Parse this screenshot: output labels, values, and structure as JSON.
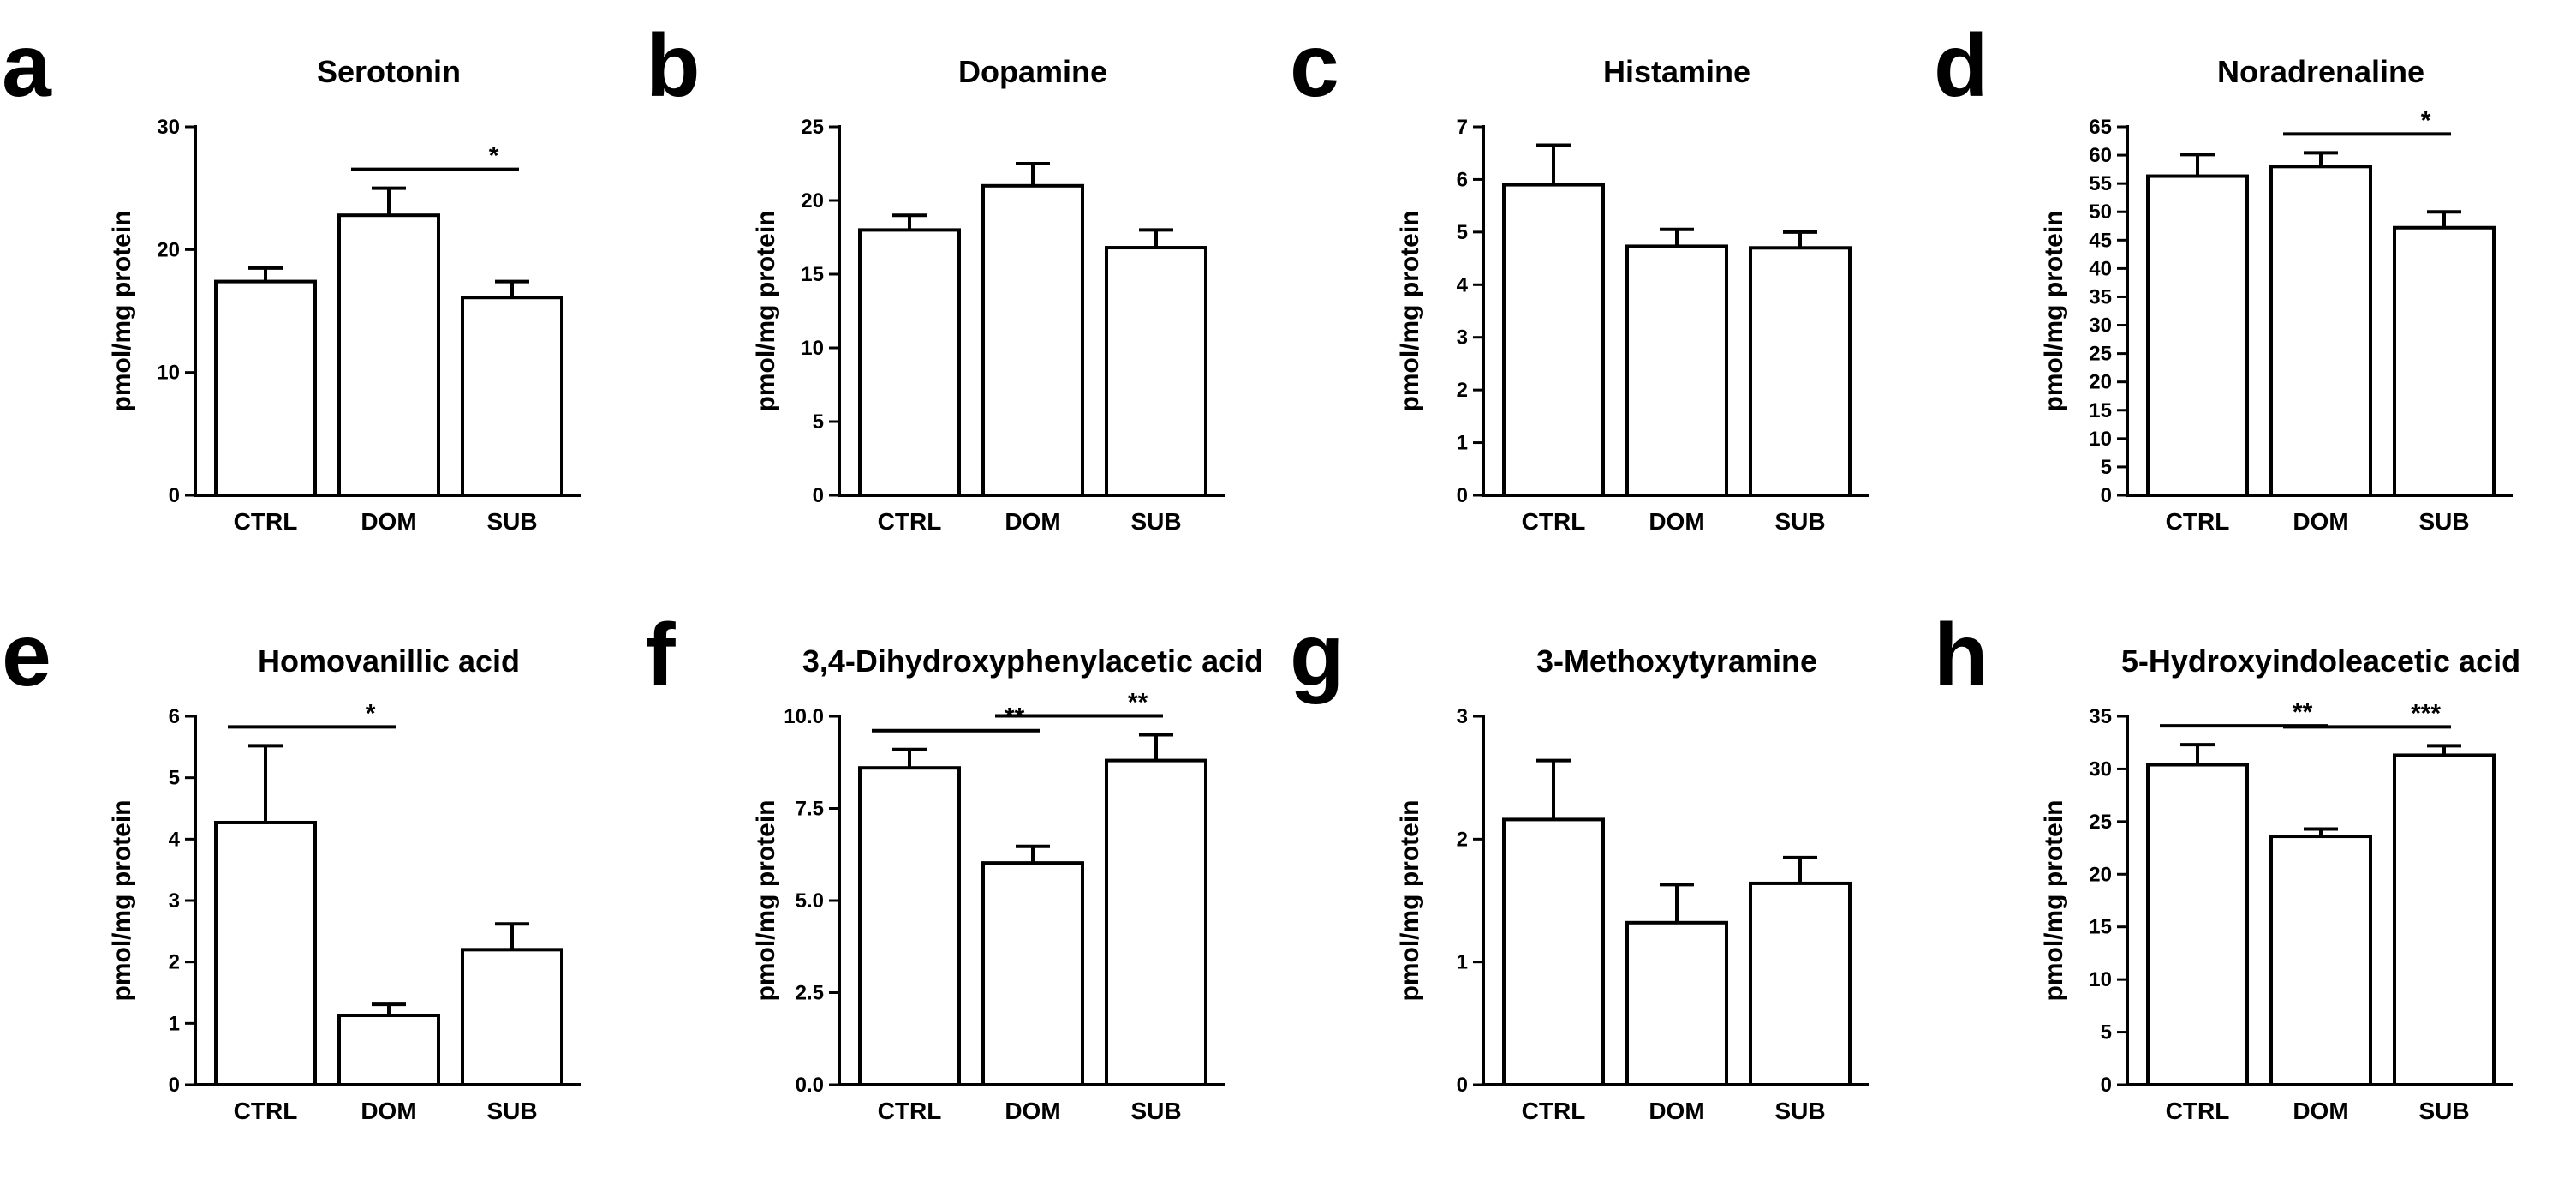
{
  "chart_data": [
    {
      "panel": "a",
      "type": "bar",
      "title": "Serotonin",
      "ylabel": "pmol/mg protein",
      "categories": [
        "CTRL",
        "DOM",
        "SUB"
      ],
      "values": [
        17.4,
        22.8,
        16.1
      ],
      "errors": [
        1.1,
        2.2,
        1.3
      ],
      "ylim": [
        0,
        30
      ],
      "yticks": [
        "0",
        "10",
        "20",
        "30"
      ],
      "significance": [
        {
          "from": 1,
          "to": 2,
          "label": "*"
        }
      ]
    },
    {
      "panel": "b",
      "type": "bar",
      "title": "Dopamine",
      "ylabel": "pmol/mg protein",
      "categories": [
        "CTRL",
        "DOM",
        "SUB"
      ],
      "values": [
        18.0,
        21.0,
        16.8
      ],
      "errors": [
        1.0,
        1.5,
        1.2
      ],
      "ylim": [
        0,
        25
      ],
      "yticks": [
        "0",
        "5",
        "10",
        "15",
        "20",
        "25"
      ],
      "significance": []
    },
    {
      "panel": "c",
      "type": "bar",
      "title": "Histamine",
      "ylabel": "pmol/mg protein",
      "categories": [
        "CTRL",
        "DOM",
        "SUB"
      ],
      "values": [
        5.9,
        4.73,
        4.7
      ],
      "errors": [
        0.75,
        0.32,
        0.3
      ],
      "ylim": [
        0,
        7
      ],
      "yticks": [
        "0",
        "1",
        "2",
        "3",
        "4",
        "5",
        "6",
        "7"
      ],
      "significance": []
    },
    {
      "panel": "d",
      "type": "bar",
      "title": "Noradrenaline",
      "ylabel": "pmol/mg protein",
      "categories": [
        "CTRL",
        "DOM",
        "SUB"
      ],
      "values": [
        56.3,
        58.0,
        47.2
      ],
      "errors": [
        3.8,
        2.4,
        2.8
      ],
      "ylim": [
        0,
        65
      ],
      "yticks": [
        "0",
        "5",
        "10",
        "15",
        "20",
        "25",
        "30",
        "35",
        "40",
        "45",
        "50",
        "55",
        "60",
        "65"
      ],
      "significance": [
        {
          "from": 1,
          "to": 2,
          "label": "*"
        }
      ]
    },
    {
      "panel": "e",
      "type": "bar",
      "title": "Homovanillic acid",
      "ylabel": "pmol/mg protein",
      "categories": [
        "CTRL",
        "DOM",
        "SUB"
      ],
      "values": [
        4.27,
        1.13,
        2.2
      ],
      "errors": [
        1.25,
        0.18,
        0.42
      ],
      "ylim": [
        0,
        6
      ],
      "yticks": [
        "0",
        "1",
        "2",
        "3",
        "4",
        "5",
        "6"
      ],
      "significance": [
        {
          "from": 0,
          "to": 1,
          "label": "*"
        }
      ]
    },
    {
      "panel": "f",
      "type": "bar",
      "title": "3,4-Dihydroxyphenylacetic acid",
      "ylabel": "pmol/mg protein",
      "categories": [
        "CTRL",
        "DOM",
        "SUB"
      ],
      "values": [
        8.6,
        6.02,
        8.8
      ],
      "errors": [
        0.5,
        0.45,
        0.7
      ],
      "ylim": [
        0,
        10
      ],
      "yticks": [
        "0.0",
        "2.5",
        "5.0",
        "7.5",
        "10.0"
      ],
      "significance": [
        {
          "from": 0,
          "to": 1,
          "label": "**"
        },
        {
          "from": 1,
          "to": 2,
          "label": "**"
        }
      ]
    },
    {
      "panel": "g",
      "type": "bar",
      "title": "3-Methoxytyramine",
      "ylabel": "pmol/mg protein",
      "categories": [
        "CTRL",
        "DOM",
        "SUB"
      ],
      "values": [
        2.16,
        1.32,
        1.64
      ],
      "errors": [
        0.48,
        0.31,
        0.21
      ],
      "ylim": [
        0,
        3
      ],
      "yticks": [
        "0",
        "1",
        "2",
        "3"
      ],
      "significance": []
    },
    {
      "panel": "h",
      "type": "bar",
      "title": "5-Hydroxyindoleacetic acid",
      "ylabel": "pmol/mg protein",
      "categories": [
        "CTRL",
        "DOM",
        "SUB"
      ],
      "values": [
        30.4,
        23.6,
        31.3
      ],
      "errors": [
        1.9,
        0.7,
        0.9
      ],
      "ylim": [
        0,
        35
      ],
      "yticks": [
        "0",
        "5",
        "10",
        "15",
        "20",
        "25",
        "30",
        "35"
      ],
      "significance": [
        {
          "from": 0,
          "to": 1,
          "label": "**"
        },
        {
          "from": 1,
          "to": 2,
          "label": "***"
        }
      ]
    }
  ]
}
